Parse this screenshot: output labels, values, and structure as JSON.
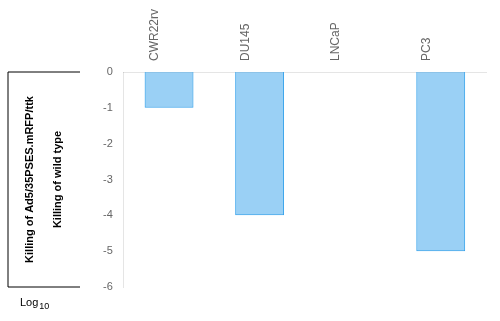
{
  "chart_data": {
    "type": "bar",
    "categories": [
      "CWR22rv",
      "DU145",
      "LNCaP",
      "PC3"
    ],
    "values": [
      -1.0,
      -4.0,
      0.0,
      -5.0
    ],
    "ylim": [
      -6,
      0
    ],
    "yticks": [
      0,
      -1,
      -2,
      -3,
      -4,
      -5,
      -6
    ],
    "ylabel": [
      "Killing of Ad5/35PSES.mRFP/ttk",
      "Killing of wild type"
    ],
    "annotations": [
      "Log",
      "10"
    ],
    "grid": false
  }
}
